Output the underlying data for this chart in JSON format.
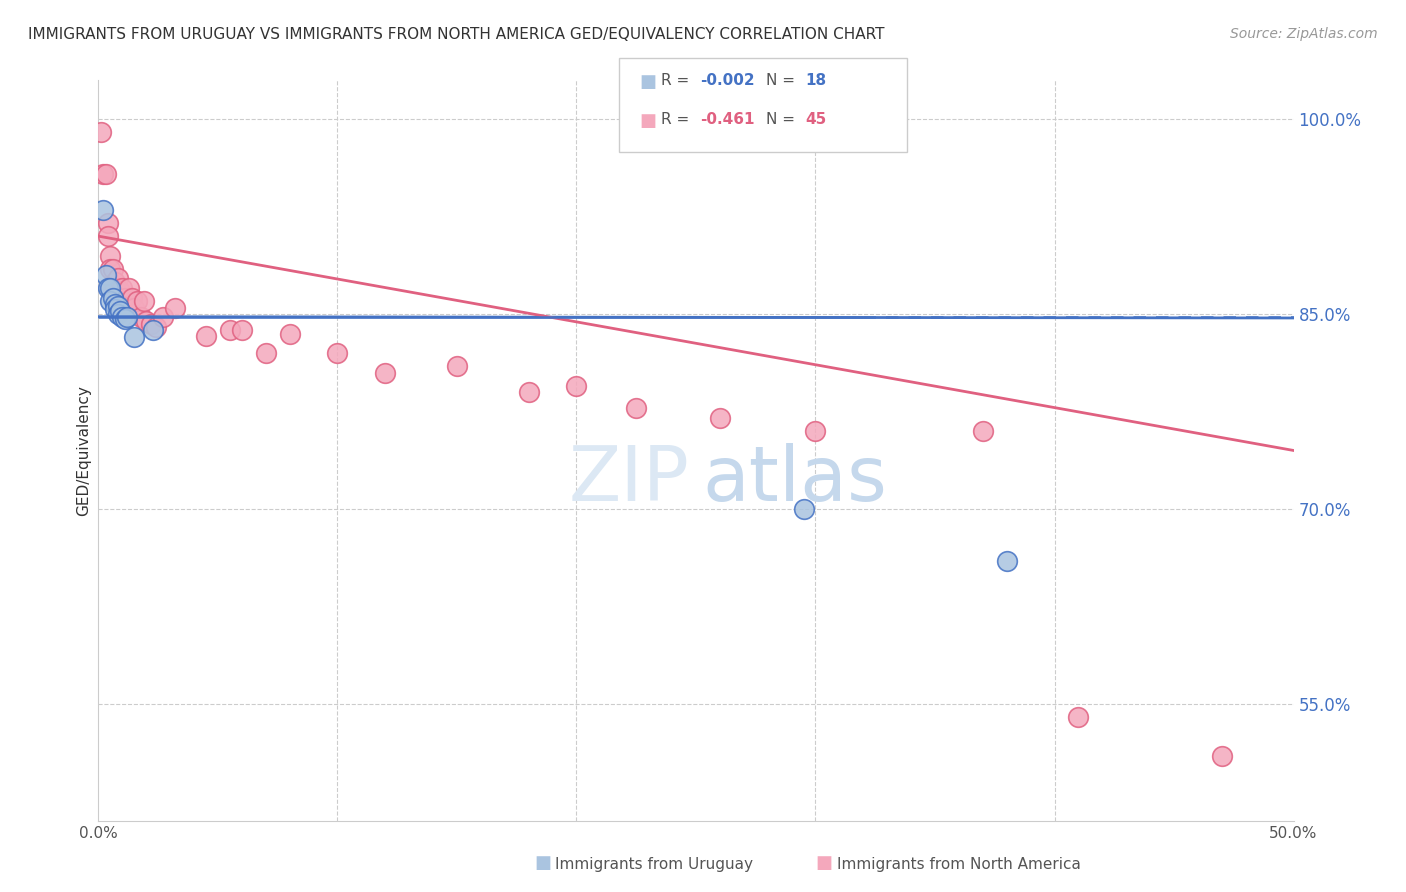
{
  "title": "IMMIGRANTS FROM URUGUAY VS IMMIGRANTS FROM NORTH AMERICA GED/EQUIVALENCY CORRELATION CHART",
  "source": "Source: ZipAtlas.com",
  "ylabel": "GED/Equivalency",
  "yticks": [
    1.0,
    0.85,
    0.7,
    0.55
  ],
  "ytick_labels": [
    "100.0%",
    "85.0%",
    "70.0%",
    "55.0%"
  ],
  "xlim": [
    0.0,
    0.5
  ],
  "ylim": [
    0.46,
    1.03
  ],
  "blue_R": "-0.002",
  "blue_N": "18",
  "pink_R": "-0.461",
  "pink_N": "45",
  "blue_color": "#aac4e0",
  "pink_color": "#f4a8bc",
  "blue_line_color": "#4472c4",
  "pink_line_color": "#e06080",
  "blue_scatter_x": [
    0.002,
    0.003,
    0.004,
    0.005,
    0.005,
    0.006,
    0.007,
    0.007,
    0.008,
    0.008,
    0.009,
    0.01,
    0.011,
    0.012,
    0.015,
    0.023,
    0.295,
    0.38
  ],
  "blue_scatter_y": [
    0.93,
    0.88,
    0.87,
    0.87,
    0.86,
    0.862,
    0.858,
    0.854,
    0.856,
    0.85,
    0.852,
    0.848,
    0.846,
    0.848,
    0.832,
    0.838,
    0.7,
    0.66
  ],
  "pink_scatter_x": [
    0.001,
    0.002,
    0.003,
    0.004,
    0.004,
    0.005,
    0.005,
    0.006,
    0.006,
    0.007,
    0.007,
    0.008,
    0.008,
    0.009,
    0.01,
    0.01,
    0.011,
    0.012,
    0.013,
    0.014,
    0.015,
    0.016,
    0.018,
    0.019,
    0.02,
    0.022,
    0.024,
    0.027,
    0.032,
    0.045,
    0.055,
    0.06,
    0.07,
    0.08,
    0.1,
    0.12,
    0.15,
    0.18,
    0.2,
    0.225,
    0.26,
    0.3,
    0.37,
    0.41,
    0.47
  ],
  "pink_scatter_y": [
    0.99,
    0.958,
    0.958,
    0.92,
    0.91,
    0.895,
    0.885,
    0.885,
    0.87,
    0.875,
    0.87,
    0.878,
    0.865,
    0.868,
    0.87,
    0.86,
    0.862,
    0.855,
    0.87,
    0.862,
    0.855,
    0.86,
    0.848,
    0.86,
    0.845,
    0.842,
    0.84,
    0.848,
    0.855,
    0.833,
    0.838,
    0.838,
    0.82,
    0.835,
    0.82,
    0.805,
    0.81,
    0.79,
    0.795,
    0.778,
    0.77,
    0.76,
    0.76,
    0.54,
    0.51
  ],
  "blue_trend_x": [
    0.0,
    0.5
  ],
  "blue_trend_y": [
    0.848,
    0.847
  ],
  "pink_trend_x": [
    0.0,
    0.5
  ],
  "pink_trend_y": [
    0.91,
    0.745
  ],
  "blue_hline_y": 0.848,
  "blue_hline_solid_end": 0.32,
  "bottom_legend_blue": "Immigrants from Uruguay",
  "bottom_legend_pink": "Immigrants from North America"
}
